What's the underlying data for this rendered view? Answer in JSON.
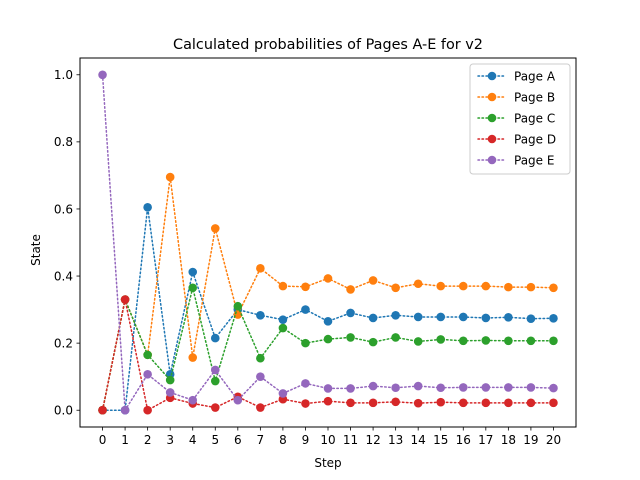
{
  "chart_data": {
    "type": "line",
    "title": "Calculated probabilities of Pages A-E for v2",
    "xlabel": "Step",
    "ylabel": "State",
    "xlim": [
      -1,
      21
    ],
    "ylim": [
      -0.05,
      1.05
    ],
    "x": [
      0,
      1,
      2,
      3,
      4,
      5,
      6,
      7,
      8,
      9,
      10,
      11,
      12,
      13,
      14,
      15,
      16,
      17,
      18,
      19,
      20
    ],
    "xticks": [
      "0",
      "1",
      "2",
      "3",
      "4",
      "5",
      "6",
      "7",
      "8",
      "9",
      "10",
      "11",
      "12",
      "13",
      "14",
      "15",
      "16",
      "17",
      "18",
      "19",
      "20"
    ],
    "yticks": [
      0.0,
      0.2,
      0.4,
      0.6,
      0.8,
      1.0
    ],
    "ytick_labels": [
      "0.0",
      "0.2",
      "0.4",
      "0.6",
      "0.8",
      "1.0"
    ],
    "grid": false,
    "legend_position": "top-right",
    "line_style": "dotted",
    "marker": "circle",
    "series": [
      {
        "name": "Page A",
        "color": "#1f77b4",
        "values": [
          0.0,
          0.0,
          0.605,
          0.107,
          0.412,
          0.215,
          0.3,
          0.283,
          0.27,
          0.3,
          0.265,
          0.29,
          0.275,
          0.283,
          0.278,
          0.278,
          0.278,
          0.275,
          0.277,
          0.273,
          0.274
        ]
      },
      {
        "name": "Page B",
        "color": "#ff7f0e",
        "values": [
          0.0,
          0.33,
          0.165,
          0.695,
          0.157,
          0.542,
          0.285,
          0.423,
          0.37,
          0.368,
          0.393,
          0.36,
          0.387,
          0.365,
          0.377,
          0.37,
          0.37,
          0.37,
          0.367,
          0.367,
          0.365
        ]
      },
      {
        "name": "Page C",
        "color": "#2ca02c",
        "values": [
          0.0,
          0.33,
          0.165,
          0.09,
          0.365,
          0.087,
          0.31,
          0.155,
          0.245,
          0.2,
          0.212,
          0.217,
          0.203,
          0.217,
          0.205,
          0.211,
          0.207,
          0.208,
          0.207,
          0.207,
          0.207
        ]
      },
      {
        "name": "Page D",
        "color": "#d62728",
        "values": [
          0.0,
          0.33,
          0.0,
          0.037,
          0.02,
          0.008,
          0.04,
          0.008,
          0.033,
          0.02,
          0.027,
          0.022,
          0.022,
          0.025,
          0.021,
          0.024,
          0.022,
          0.022,
          0.022,
          0.022,
          0.022
        ]
      },
      {
        "name": "Page E",
        "color": "#9467bd",
        "values": [
          1.0,
          0.0,
          0.107,
          0.053,
          0.03,
          0.12,
          0.03,
          0.1,
          0.05,
          0.08,
          0.065,
          0.065,
          0.072,
          0.067,
          0.072,
          0.067,
          0.068,
          0.068,
          0.068,
          0.068,
          0.066
        ]
      }
    ]
  }
}
